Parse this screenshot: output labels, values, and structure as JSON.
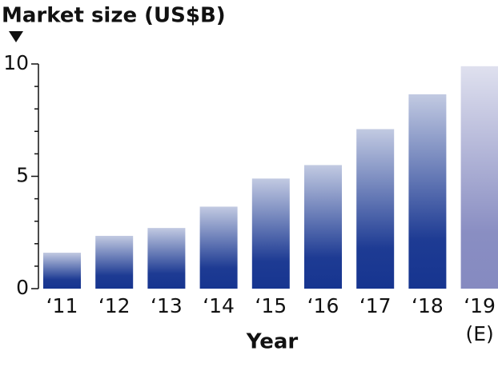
{
  "chart_data": {
    "type": "bar",
    "title": "Market size (US$B)",
    "x_label": "Year",
    "categories": [
      "‘11",
      "‘12",
      "‘13",
      "‘14",
      "‘15",
      "‘16",
      "‘17",
      "‘18",
      "‘19"
    ],
    "annotation": "(E)",
    "values": [
      1.6,
      2.35,
      2.7,
      3.65,
      4.9,
      5.5,
      7.1,
      8.65,
      9.9
    ],
    "colors": [
      "#0a2a8a",
      "#0a2a8a",
      "#0a2a8a",
      "#0a2a8a",
      "#0a2a8a",
      "#0a2a8a",
      "#0a2a8a",
      "#0a2a8a",
      "#7f84bd"
    ],
    "ylim": [
      0,
      10
    ],
    "yticks": [
      0,
      5,
      10
    ],
    "minor_yticks": [
      1,
      2,
      3,
      4,
      6,
      7,
      8,
      9
    ]
  }
}
